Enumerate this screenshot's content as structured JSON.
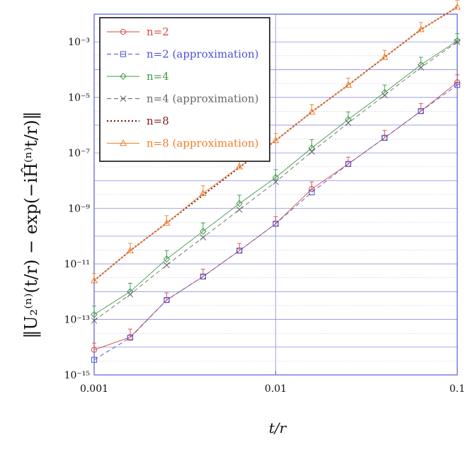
{
  "chart_data": {
    "type": "line",
    "xscale": "log",
    "yscale": "log",
    "xlim": [
      0.001,
      0.1
    ],
    "ylim": [
      1e-15,
      0.01
    ],
    "xlabel": "t/r",
    "ylabel": "‖U₂⁽ⁿ⁾(t/r) − exp(−iĤ⁽ⁿ⁾t/r)‖",
    "x_ticks": [
      {
        "value": 0.001,
        "label": "0.001"
      },
      {
        "value": 0.01,
        "label": "0.01"
      },
      {
        "value": 0.1,
        "label": "0.1"
      }
    ],
    "y_ticks": [
      {
        "value": 0.001,
        "label": "10⁻³"
      },
      {
        "value": 1e-05,
        "label": "10⁻⁵"
      },
      {
        "value": 1e-07,
        "label": "10⁻⁷"
      },
      {
        "value": 1e-09,
        "label": "10⁻⁹"
      },
      {
        "value": 1e-11,
        "label": "10⁻¹¹"
      },
      {
        "value": 1e-13,
        "label": "10⁻¹³"
      },
      {
        "value": 1e-15,
        "label": "10⁻¹⁵"
      }
    ],
    "grid": true,
    "legend_position": "top-left",
    "x": [
      0.001,
      0.00158,
      0.00251,
      0.00398,
      0.00631,
      0.01,
      0.0158,
      0.0251,
      0.0398,
      0.0631,
      0.1
    ],
    "series": [
      {
        "name": "n=2",
        "color": "#d9473b",
        "marker": "circle",
        "dash": "solid",
        "values": [
          8e-15,
          2.3e-14,
          5e-13,
          3.5e-12,
          3e-11,
          2.8e-10,
          5e-09,
          4e-08,
          3.5e-07,
          3.2e-06,
          3.5e-05
        ],
        "err_up": [
          1.4e-14,
          4.5e-14,
          9e-13,
          6.5e-12,
          5.5e-11,
          5e-10,
          9e-09,
          7e-08,
          6.5e-07,
          6e-06,
          6.5e-05
        ]
      },
      {
        "name": "n=2 (approximation)",
        "color": "#4a50d6",
        "marker": "square",
        "dash": "6,4",
        "values": [
          3.5e-15,
          2.2e-14,
          5e-13,
          3.5e-12,
          3e-11,
          2.8e-10,
          3.8e-09,
          4e-08,
          3.5e-07,
          3.2e-06,
          2.8e-05
        ],
        "err_up": null
      },
      {
        "name": "n=4",
        "color": "#3f9a46",
        "marker": "diamond",
        "dash": "solid",
        "values": [
          1.5e-13,
          1e-12,
          1.5e-11,
          1.5e-10,
          1.5e-09,
          1.3e-08,
          1.5e-07,
          1.6e-06,
          1.5e-05,
          0.00015,
          0.0011
        ],
        "err_up": [
          3e-13,
          2e-12,
          3e-11,
          3e-10,
          3e-09,
          2.5e-08,
          3e-07,
          3e-06,
          2.8e-05,
          0.00028,
          0.002
        ]
      },
      {
        "name": "n=4 (approximation)",
        "color": "#666666",
        "marker": "x",
        "dash": "6,4",
        "values": [
          9e-14,
          8e-13,
          9e-12,
          9e-11,
          9e-10,
          9e-09,
          1.1e-07,
          1.2e-06,
          1.2e-05,
          0.00012,
          0.001
        ],
        "err_up": null
      },
      {
        "name": "n=8",
        "color": "#7a1a1a",
        "marker": "none",
        "dash": "2,3",
        "values": [
          2.5e-12,
          3e-11,
          3e-10,
          3e-09,
          3e-08,
          2.8e-07,
          3e-06,
          2.8e-05,
          0.00028,
          0.0028,
          0.018
        ],
        "err_up": null
      },
      {
        "name": "n=8 (approximation)",
        "color": "#f07f2a",
        "marker": "triangle",
        "dash": "solid",
        "values": [
          2.5e-12,
          3e-11,
          3e-10,
          3.5e-09,
          3.2e-08,
          2.8e-07,
          3e-06,
          2.8e-05,
          0.00028,
          0.0028,
          0.018
        ],
        "err_up": [
          4.5e-12,
          5.5e-11,
          5.5e-10,
          6.5e-09,
          6e-08,
          5e-07,
          5.5e-06,
          5e-05,
          0.0005,
          0.005,
          0.032
        ]
      }
    ]
  }
}
